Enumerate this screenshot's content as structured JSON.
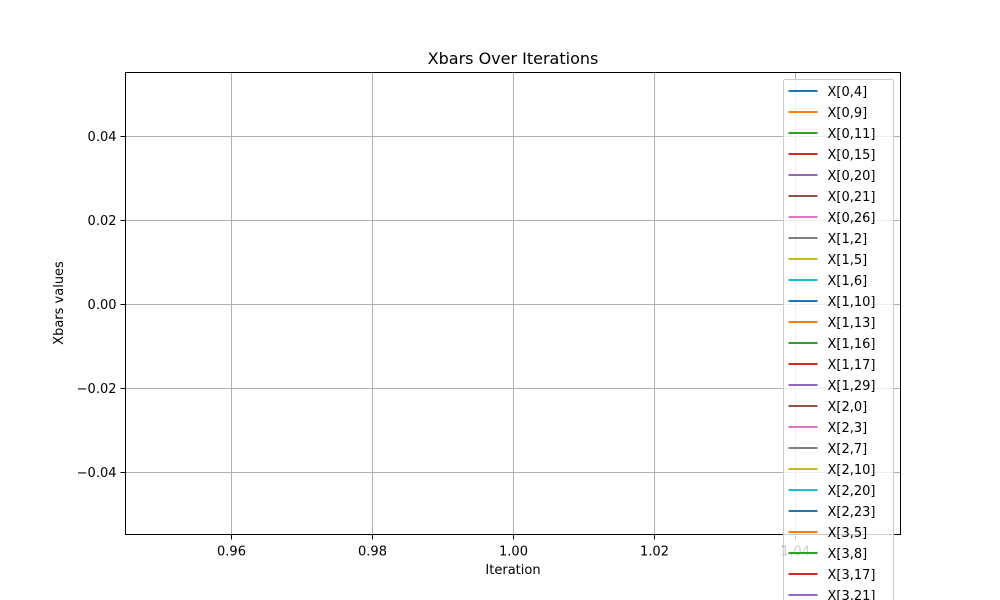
{
  "chart_data": {
    "type": "line",
    "title": "Xbars Over Iterations",
    "xlabel": "Iteration",
    "ylabel": "Xbars values",
    "xlim": [
      0.945,
      1.055
    ],
    "ylim": [
      -0.055,
      0.055
    ],
    "xticks": [
      0.96,
      0.98,
      1.0,
      1.02,
      1.04
    ],
    "xtick_labels": [
      "0.96",
      "0.98",
      "1.00",
      "1.02",
      "1.04"
    ],
    "yticks": [
      -0.04,
      -0.02,
      0.0,
      0.02,
      0.04
    ],
    "ytick_labels": [
      "−0.04",
      "−0.02",
      "0.00",
      "0.02",
      "0.04"
    ],
    "grid": true,
    "legend_position": "upper-right",
    "series": [
      {
        "name": "X[0,4]",
        "color": "#1f77b4",
        "x": [
          1
        ],
        "y": [
          0
        ]
      },
      {
        "name": "X[0,9]",
        "color": "#ff7f0e",
        "x": [
          1
        ],
        "y": [
          0
        ]
      },
      {
        "name": "X[0,11]",
        "color": "#2ca02c",
        "x": [
          1
        ],
        "y": [
          0
        ]
      },
      {
        "name": "X[0,15]",
        "color": "#d62728",
        "x": [
          1
        ],
        "y": [
          0
        ]
      },
      {
        "name": "X[0,20]",
        "color": "#9467bd",
        "x": [
          1
        ],
        "y": [
          0
        ]
      },
      {
        "name": "X[0,21]",
        "color": "#8c564b",
        "x": [
          1
        ],
        "y": [
          0
        ]
      },
      {
        "name": "X[0,26]",
        "color": "#e377c2",
        "x": [
          1
        ],
        "y": [
          0
        ]
      },
      {
        "name": "X[1,2]",
        "color": "#7f7f7f",
        "x": [
          1
        ],
        "y": [
          0
        ]
      },
      {
        "name": "X[1,5]",
        "color": "#bcbd22",
        "x": [
          1
        ],
        "y": [
          0
        ]
      },
      {
        "name": "X[1,6]",
        "color": "#17becf",
        "x": [
          1
        ],
        "y": [
          0
        ]
      },
      {
        "name": "X[1,10]",
        "color": "#1f77b4",
        "x": [
          1
        ],
        "y": [
          0
        ]
      },
      {
        "name": "X[1,13]",
        "color": "#ff7f0e",
        "x": [
          1
        ],
        "y": [
          0
        ]
      },
      {
        "name": "X[1,16]",
        "color": "#2ca02c",
        "x": [
          1
        ],
        "y": [
          0
        ]
      },
      {
        "name": "X[1,17]",
        "color": "#d62728",
        "x": [
          1
        ],
        "y": [
          0
        ]
      },
      {
        "name": "X[1,29]",
        "color": "#9467bd",
        "x": [
          1
        ],
        "y": [
          0
        ]
      },
      {
        "name": "X[2,0]",
        "color": "#8c564b",
        "x": [
          1
        ],
        "y": [
          0
        ]
      },
      {
        "name": "X[2,3]",
        "color": "#e377c2",
        "x": [
          1
        ],
        "y": [
          0
        ]
      },
      {
        "name": "X[2,7]",
        "color": "#7f7f7f",
        "x": [
          1
        ],
        "y": [
          0
        ]
      },
      {
        "name": "X[2,10]",
        "color": "#bcbd22",
        "x": [
          1
        ],
        "y": [
          0
        ]
      },
      {
        "name": "X[2,20]",
        "color": "#17becf",
        "x": [
          1
        ],
        "y": [
          0
        ]
      },
      {
        "name": "X[2,23]",
        "color": "#1f77b4",
        "x": [
          1
        ],
        "y": [
          0
        ]
      },
      {
        "name": "X[3,5]",
        "color": "#ff7f0e",
        "x": [
          1
        ],
        "y": [
          0
        ]
      },
      {
        "name": "X[3,8]",
        "color": "#2ca02c",
        "x": [
          1
        ],
        "y": [
          0
        ]
      },
      {
        "name": "X[3,17]",
        "color": "#d62728",
        "x": [
          1
        ],
        "y": [
          0
        ]
      },
      {
        "name": "X[3,21]",
        "color": "#9467bd",
        "x": [
          1
        ],
        "y": [
          0
        ]
      }
    ]
  }
}
